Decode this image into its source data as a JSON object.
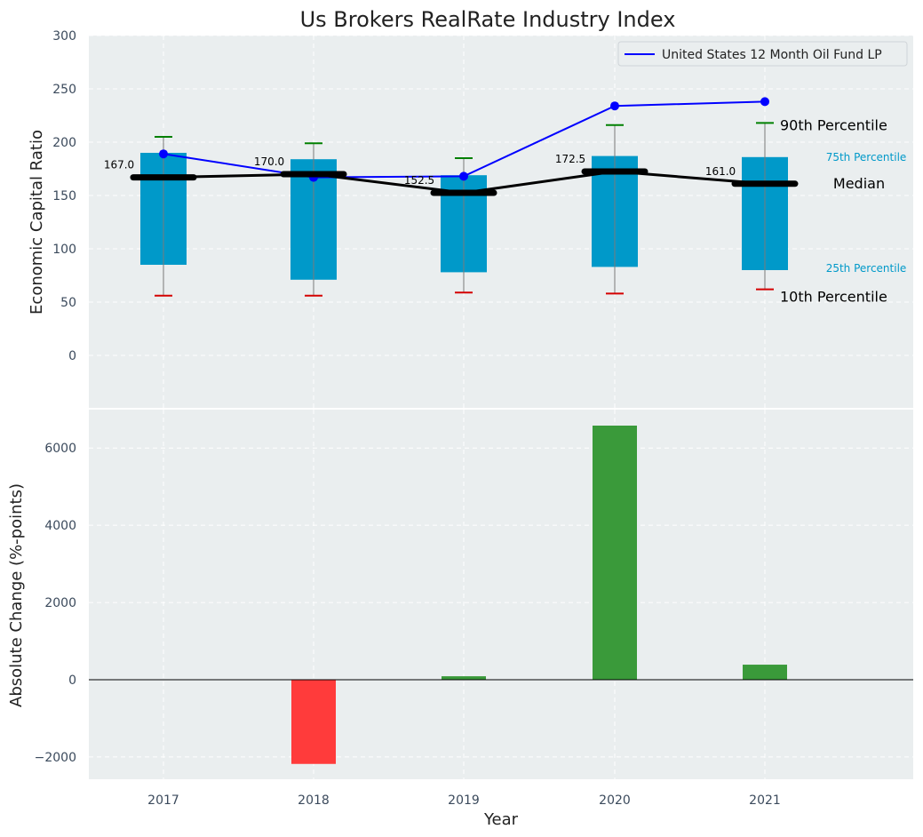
{
  "colors": {
    "panel_bg": "#eaeeef",
    "box": "#0099c9",
    "whisker_line": "#7a7a7a",
    "cap_top": "#008000",
    "cap_bottom": "#d40000",
    "median": "#000000",
    "company": "#0000ff",
    "pos_bar": "#3a9a3a",
    "neg_bar": "#ff3b3b",
    "annot_text": "#000000",
    "pct_text": "#0099c9"
  },
  "chart_data": [
    {
      "type": "box",
      "title": "Us Brokers RealRate Industry Index",
      "ylabel": "Economic Capital Ratio",
      "ylim": [
        -50,
        300
      ],
      "yticks": [
        0,
        50,
        100,
        150,
        200,
        250,
        300
      ],
      "grid": true,
      "categories": [
        "2017",
        "2018",
        "2019",
        "2020",
        "2021"
      ],
      "p10": [
        56,
        56,
        59,
        58,
        62
      ],
      "p25": [
        85,
        71,
        78,
        83,
        80
      ],
      "median": [
        167.0,
        170.0,
        152.5,
        172.5,
        161.0
      ],
      "median_labels": [
        "167.0",
        "170.0",
        "152.5",
        "172.5",
        "161.0"
      ],
      "p75": [
        190,
        184,
        169,
        187,
        186
      ],
      "p90": [
        205,
        199,
        185,
        216,
        218
      ],
      "company_series": {
        "name": "United States 12 Month Oil Fund LP",
        "values": [
          189,
          167,
          168,
          234,
          238
        ]
      },
      "legend_position": "top-right",
      "annotations": {
        "p90": "90th Percentile",
        "p75": "75th Percentile",
        "median": "Median",
        "p25": "25th Percentile",
        "p10": "10th Percentile"
      }
    },
    {
      "type": "bar",
      "xlabel": "Year",
      "ylabel": "Absolute Change (%-points)",
      "ylim": [
        -2600,
        7100
      ],
      "yticks": [
        -2000,
        0,
        2000,
        4000,
        6000
      ],
      "ytick_labels": [
        "−2000",
        "0",
        "2000",
        "4000",
        "6000"
      ],
      "grid": true,
      "categories": [
        "2017",
        "2018",
        "2019",
        "2020",
        "2021"
      ],
      "values": [
        0,
        -2180,
        90,
        6580,
        390
      ]
    }
  ]
}
